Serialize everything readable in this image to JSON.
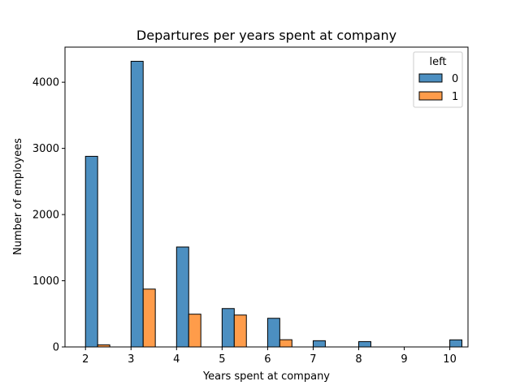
{
  "chart_data": {
    "type": "bar",
    "title": "Departures per years spent at company",
    "xlabel": "Years spent at company",
    "ylabel": "Number of employees",
    "xlim": [
      1.55,
      10.4
    ],
    "ylim": [
      0,
      4530
    ],
    "xticks": [
      2,
      3,
      4,
      5,
      6,
      7,
      8,
      9,
      10
    ],
    "yticks": [
      0,
      1000,
      2000,
      3000,
      4000
    ],
    "grid": false,
    "legend": {
      "title": "left",
      "placement": "top-right"
    },
    "bar_width": 0.2667,
    "series": [
      {
        "name": "0",
        "color": "#4c8fc1",
        "x": [
          2,
          3,
          4,
          5,
          6,
          7,
          8,
          9,
          10
        ],
        "values": [
          2880,
          4316,
          1510,
          580,
          433,
          94,
          81,
          0,
          107
        ]
      },
      {
        "name": "1",
        "color": "#ff9c4a",
        "x": [
          2,
          3,
          4,
          5,
          6,
          7,
          8,
          9,
          10
        ],
        "values": [
          31,
          874,
          495,
          482,
          109,
          0,
          0,
          0,
          0
        ]
      }
    ]
  }
}
